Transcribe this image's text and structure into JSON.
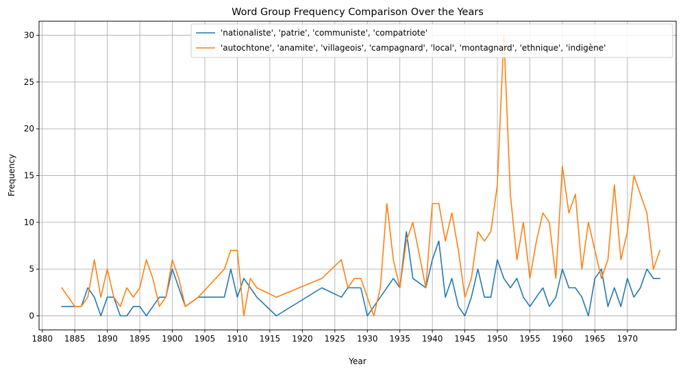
{
  "chart_data": {
    "type": "line",
    "title": "Word Group Frequency Comparison Over the Years",
    "xlabel": "Year",
    "ylabel": "Frequency",
    "xlim": [
      1879.5,
      1977.5
    ],
    "ylim": [
      -1.5,
      31.5
    ],
    "xticks": [
      1880,
      1885,
      1890,
      1895,
      1900,
      1905,
      1910,
      1915,
      1920,
      1925,
      1930,
      1935,
      1940,
      1945,
      1950,
      1955,
      1960,
      1965,
      1970
    ],
    "yticks": [
      0,
      5,
      10,
      15,
      20,
      25,
      30
    ],
    "grid": true,
    "legend_position": "top-right",
    "series": [
      {
        "name": "'nationaliste', 'patrie', 'communiste', 'compatriote'",
        "color": "#1f77b4",
        "x": [
          1883,
          1885,
          1886,
          1887,
          1888,
          1889,
          1890,
          1891,
          1892,
          1893,
          1894,
          1895,
          1896,
          1897,
          1898,
          1899,
          1900,
          1902,
          1904,
          1906,
          1908,
          1909,
          1910,
          1911,
          1912,
          1913,
          1916,
          1923,
          1926,
          1927,
          1928,
          1929,
          1930,
          1931,
          1932,
          1933,
          1934,
          1935,
          1936,
          1937,
          1939,
          1940,
          1941,
          1942,
          1943,
          1944,
          1945,
          1946,
          1947,
          1948,
          1949,
          1950,
          1951,
          1952,
          1953,
          1954,
          1955,
          1956,
          1957,
          1958,
          1959,
          1960,
          1961,
          1962,
          1963,
          1964,
          1965,
          1966,
          1967,
          1968,
          1969,
          1970,
          1971,
          1972,
          1973,
          1974,
          1975
        ],
        "y": [
          1,
          1,
          1,
          3,
          2,
          0,
          2,
          2,
          0,
          0,
          1,
          1,
          0,
          1,
          2,
          2,
          5,
          1,
          2,
          2,
          2,
          5,
          2,
          4,
          3,
          2,
          0,
          3,
          2,
          3,
          3,
          3,
          0,
          1,
          2,
          3,
          4,
          3,
          9,
          4,
          3,
          6,
          8,
          2,
          4,
          1,
          0,
          2,
          5,
          2,
          2,
          6,
          4,
          3,
          4,
          2,
          1,
          2,
          3,
          1,
          2,
          5,
          3,
          3,
          2,
          0,
          4,
          5,
          1,
          3,
          1,
          4,
          2,
          3,
          5,
          4,
          4
        ]
      },
      {
        "name": "'autochtone', 'anamite', 'villageois', 'campagnard', 'local', 'montagnard', 'ethnique', 'indigène'",
        "color": "#ff7f0e",
        "x": [
          1883,
          1885,
          1886,
          1887,
          1888,
          1889,
          1890,
          1891,
          1892,
          1893,
          1894,
          1895,
          1896,
          1897,
          1898,
          1899,
          1900,
          1901,
          1902,
          1904,
          1908,
          1909,
          1910,
          1911,
          1912,
          1913,
          1916,
          1923,
          1926,
          1927,
          1928,
          1929,
          1930,
          1931,
          1932,
          1933,
          1934,
          1935,
          1936,
          1937,
          1939,
          1940,
          1941,
          1942,
          1943,
          1944,
          1945,
          1946,
          1947,
          1948,
          1949,
          1950,
          1951,
          1952,
          1953,
          1954,
          1955,
          1956,
          1957,
          1958,
          1959,
          1960,
          1961,
          1962,
          1963,
          1964,
          1965,
          1966,
          1967,
          1968,
          1969,
          1970,
          1971,
          1973,
          1974,
          1975
        ],
        "y": [
          3,
          1,
          1,
          2,
          6,
          2,
          5,
          2,
          1,
          3,
          2,
          3,
          6,
          4,
          1,
          2,
          6,
          4,
          1,
          2,
          5,
          7,
          7,
          0,
          4,
          3,
          2,
          4,
          6,
          3,
          4,
          4,
          2,
          0,
          3,
          12,
          6,
          3,
          8,
          10,
          3,
          12,
          12,
          8,
          11,
          7,
          2,
          4,
          9,
          8,
          9,
          14,
          30,
          13,
          6,
          10,
          4,
          8,
          11,
          10,
          4,
          16,
          11,
          13,
          5,
          10,
          7,
          4,
          6,
          14,
          6,
          9,
          15,
          11,
          5,
          7
        ]
      }
    ]
  }
}
